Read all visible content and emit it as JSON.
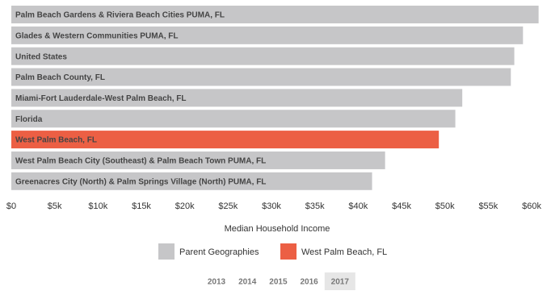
{
  "chart_data": {
    "type": "hbar",
    "categories": [
      "Palm Beach Gardens & Riviera Beach Cities PUMA, FL",
      "Glades & Western Communities PUMA, FL",
      "United States",
      "Palm Beach County, FL",
      "Miami-Fort Lauderdale-West Palm Beach, FL",
      "Florida",
      "West Palm Beach, FL",
      "West Palm Beach City (Southeast) & Palm Beach Town PUMA, FL",
      "Greenacres City (North) & Palm Springs Village (North) PUMA, FL"
    ],
    "series": [
      {
        "name": "Parent Geographies",
        "color": "#c6c6c8",
        "values": [
          60800,
          59000,
          58000,
          57600,
          52000,
          51200,
          null,
          43100,
          41600
        ]
      },
      {
        "name": "West Palm Beach, FL",
        "color": "#ec5f44",
        "values": [
          null,
          null,
          null,
          null,
          null,
          null,
          49300,
          null,
          null
        ]
      }
    ],
    "x_label": "Median Household Income",
    "xlim": [
      0,
      61300
    ],
    "xticks": [
      {
        "value": 0,
        "label": "$0"
      },
      {
        "value": 5000,
        "label": "$5k"
      },
      {
        "value": 10000,
        "label": "$10k"
      },
      {
        "value": 15000,
        "label": "$15k"
      },
      {
        "value": 20000,
        "label": "$20k"
      },
      {
        "value": 25000,
        "label": "$25k"
      },
      {
        "value": 30000,
        "label": "$30k"
      },
      {
        "value": 35000,
        "label": "$35k"
      },
      {
        "value": 40000,
        "label": "$40k"
      },
      {
        "value": 45000,
        "label": "$45k"
      },
      {
        "value": 50000,
        "label": "$50k"
      },
      {
        "value": 55000,
        "label": "$55k"
      },
      {
        "value": 60000,
        "label": "$60k"
      }
    ],
    "years": [
      "2013",
      "2014",
      "2015",
      "2016",
      "2017"
    ],
    "selected_year": 4
  }
}
